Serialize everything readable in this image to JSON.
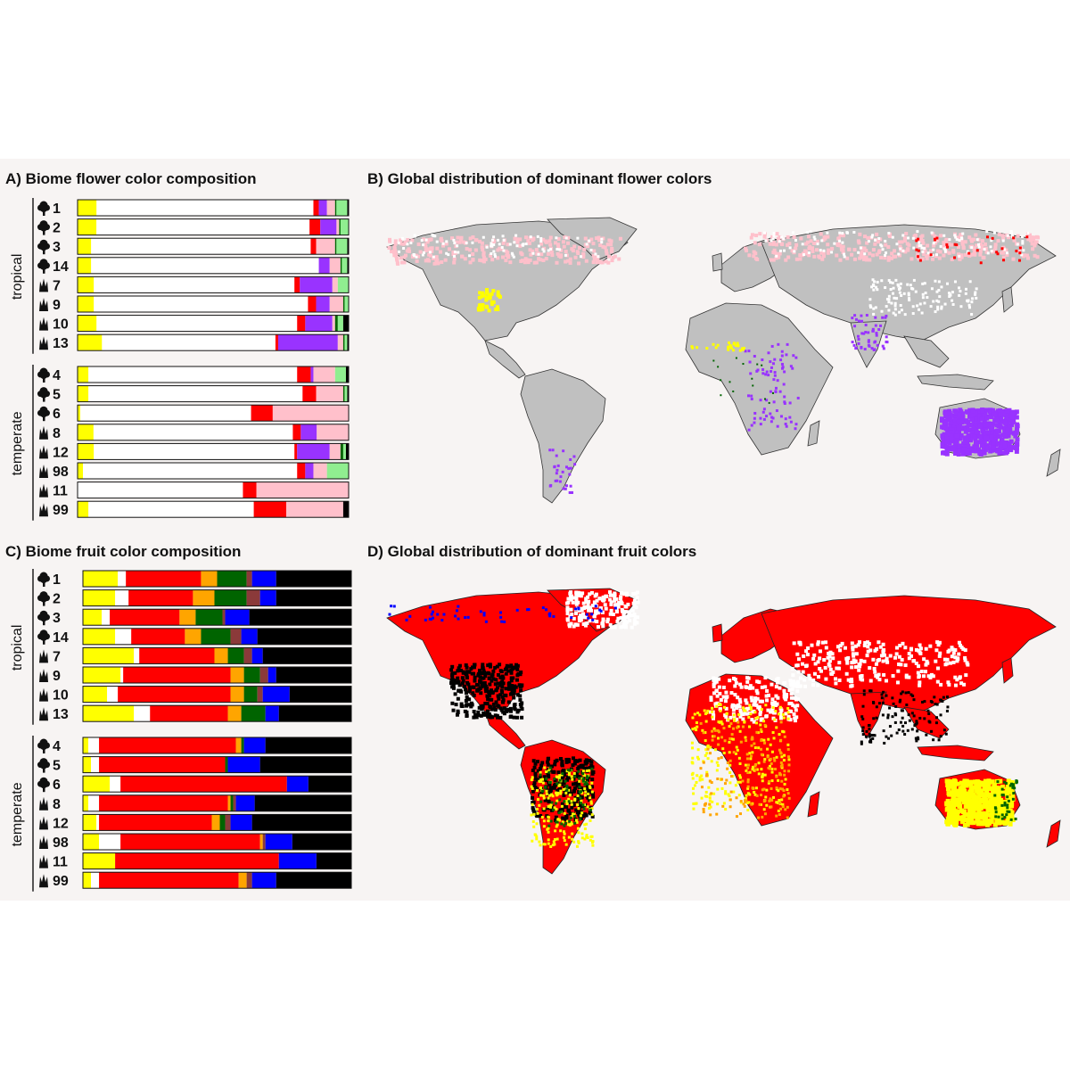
{
  "panels": {
    "a": "A) Biome flower color composition",
    "b": "B) Global distribution of dominant flower colors",
    "c": "C) Biome fruit color composition",
    "d": "D) Global distribution of dominant fruit colors"
  },
  "group_labels": {
    "tropical": "tropical",
    "temperate": "temperate"
  },
  "icon_names": {
    "tree": "tree-icon",
    "grass": "grass-icon"
  },
  "colors": {
    "yellow": "#ffff00",
    "white": "#ffffff",
    "red": "#ff0000",
    "purple": "#9933ff",
    "pink": "#ffc0cb",
    "orange": "#ffa500",
    "green": "#006400",
    "lightgreen": "#90ee90",
    "brown": "#8b3a3a",
    "blue": "#0000ff",
    "black": "#000000",
    "land_gray": "#c0c0c0",
    "background": "#f7f4f3"
  },
  "chart_data": [
    {
      "type": "bar",
      "orientation": "horizontal-stacked-100",
      "title": "A) Biome flower color composition",
      "groups": [
        {
          "label": "tropical",
          "categories": [
            "1",
            "2",
            "3",
            "14",
            "7",
            "9",
            "10",
            "13"
          ],
          "icons": [
            "tree",
            "tree",
            "tree",
            "tree",
            "grass",
            "grass",
            "grass",
            "grass"
          ]
        },
        {
          "label": "temperate",
          "categories": [
            "4",
            "5",
            "6",
            "8",
            "12",
            "98",
            "11",
            "99"
          ],
          "icons": [
            "tree",
            "tree",
            "tree",
            "grass",
            "grass",
            "grass",
            "grass",
            "grass"
          ]
        }
      ],
      "colors": [
        "#ffff00",
        "#ffffff",
        "#ff0000",
        "#9933ff",
        "#ffc0cb",
        "#006400",
        "#90ee90",
        "#000000"
      ],
      "values": [
        [
          7,
          80,
          2,
          3,
          3,
          0.5,
          4,
          0.5
        ],
        [
          7,
          79,
          4,
          6,
          1,
          0.5,
          3,
          0
        ],
        [
          5,
          81,
          2,
          0,
          7,
          0.5,
          4,
          0.5
        ],
        [
          5,
          84,
          0,
          4,
          4,
          0.5,
          2,
          0.5
        ],
        [
          6,
          74,
          2,
          12,
          2,
          0,
          4,
          0
        ],
        [
          6,
          79,
          3,
          5,
          5,
          0.5,
          1.5,
          0
        ],
        [
          7,
          74,
          3,
          10,
          1,
          1,
          2,
          2
        ],
        [
          9,
          64,
          1,
          22,
          2,
          0.5,
          1,
          0.5
        ],
        [
          4,
          77,
          5,
          1,
          8,
          0,
          4,
          1
        ],
        [
          4,
          79,
          5,
          0,
          10,
          0.5,
          1,
          0.5
        ],
        [
          1,
          63,
          8,
          0,
          28,
          0,
          0,
          0
        ],
        [
          6,
          75,
          3,
          6,
          12,
          0,
          0,
          0
        ],
        [
          6,
          74,
          1,
          12,
          4,
          1,
          1,
          1
        ],
        [
          2,
          79,
          3,
          3,
          5,
          0,
          8,
          0
        ],
        [
          0,
          61,
          5,
          0,
          34,
          0,
          0,
          0
        ],
        [
          4,
          61,
          12,
          0,
          21,
          0,
          0,
          2
        ]
      ]
    },
    {
      "type": "bar",
      "orientation": "horizontal-stacked-100",
      "title": "C) Biome fruit color composition",
      "groups": [
        {
          "label": "tropical",
          "categories": [
            "1",
            "2",
            "3",
            "14",
            "7",
            "9",
            "10",
            "13"
          ],
          "icons": [
            "tree",
            "tree",
            "tree",
            "tree",
            "grass",
            "grass",
            "grass",
            "grass"
          ]
        },
        {
          "label": "temperate",
          "categories": [
            "4",
            "5",
            "6",
            "8",
            "12",
            "98",
            "11",
            "99"
          ],
          "icons": [
            "tree",
            "tree",
            "tree",
            "grass",
            "grass",
            "grass",
            "grass",
            "grass"
          ]
        }
      ],
      "colors": [
        "#ffff00",
        "#ffffff",
        "#ff0000",
        "#ffa500",
        "#006400",
        "#8b3a3a",
        "#0000ff",
        "#000000"
      ],
      "values": [
        [
          13,
          3,
          28,
          6,
          11,
          2,
          9,
          28
        ],
        [
          12,
          5,
          24,
          8,
          12,
          5,
          6,
          28
        ],
        [
          7,
          3,
          26,
          6,
          10,
          1,
          9,
          38
        ],
        [
          12,
          6,
          20,
          6,
          11,
          4,
          6,
          35
        ],
        [
          19,
          2,
          28,
          5,
          6,
          3,
          4,
          33
        ],
        [
          14,
          1,
          40,
          5,
          6,
          3,
          3,
          28
        ],
        [
          9,
          4,
          42,
          5,
          5,
          2,
          10,
          23
        ],
        [
          19,
          6,
          29,
          5,
          9,
          0,
          5,
          27
        ],
        [
          2,
          4,
          51,
          2,
          1,
          0,
          8,
          32
        ],
        [
          3,
          3,
          47,
          0,
          1,
          0,
          12,
          34
        ],
        [
          10,
          4,
          62,
          0,
          0,
          0,
          8,
          16
        ],
        [
          2,
          4,
          48,
          1,
          1,
          1,
          7,
          36
        ],
        [
          5,
          1,
          42,
          3,
          2,
          2,
          8,
          37
        ],
        [
          6,
          8,
          52,
          1,
          0,
          1,
          10,
          22
        ],
        [
          12,
          0,
          61,
          0,
          0,
          0,
          14,
          13
        ],
        [
          3,
          3,
          52,
          3,
          0,
          2,
          9,
          28
        ]
      ]
    }
  ]
}
